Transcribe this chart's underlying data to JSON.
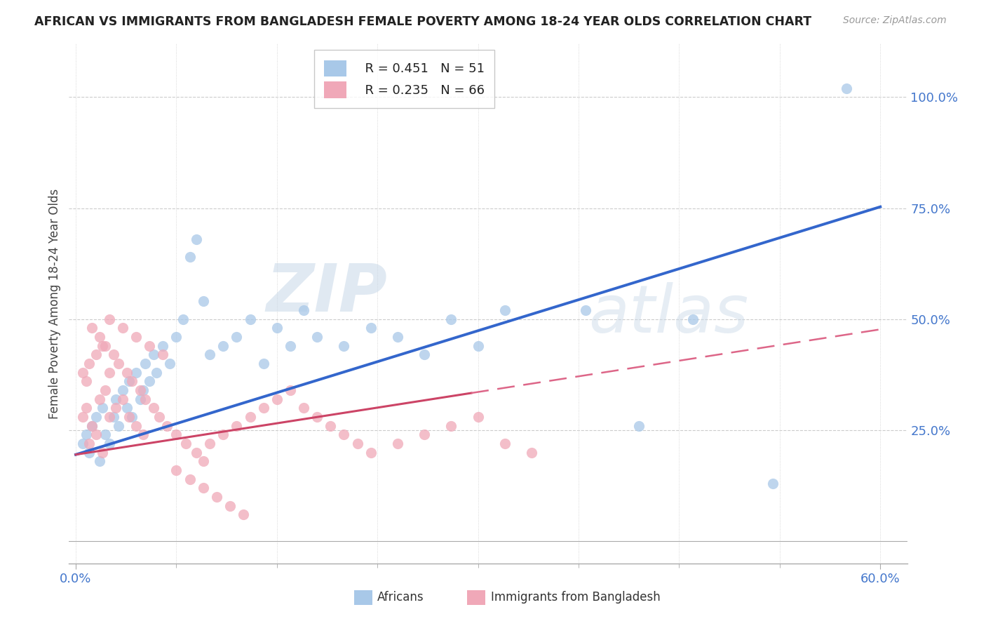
{
  "title": "AFRICAN VS IMMIGRANTS FROM BANGLADESH FEMALE POVERTY AMONG 18-24 YEAR OLDS CORRELATION CHART",
  "source": "Source: ZipAtlas.com",
  "ylabel": "Female Poverty Among 18-24 Year Olds",
  "xlim": [
    0.0,
    0.62
  ],
  "ylim": [
    -0.05,
    1.12
  ],
  "ytick_positions": [
    0.0,
    0.25,
    0.5,
    0.75,
    1.0
  ],
  "ytick_labels": [
    "",
    "25.0%",
    "50.0%",
    "75.0%",
    "100.0%"
  ],
  "watermark_zip": "ZIP",
  "watermark_atlas": "atlas",
  "legend_r1": "R = 0.451",
  "legend_n1": "N = 51",
  "legend_r2": "R = 0.235",
  "legend_n2": "N = 66",
  "blue_color": "#a8c8e8",
  "pink_color": "#f0a8b8",
  "trend_blue": "#3366cc",
  "trend_pink": "#cc4466",
  "trend_pink_dash": "#dd6688",
  "african_intercept": 0.195,
  "african_slope": 0.93,
  "bang_intercept": 0.195,
  "bang_slope": 0.47,
  "africans_x": [
    0.005,
    0.008,
    0.01,
    0.012,
    0.015,
    0.018,
    0.02,
    0.022,
    0.025,
    0.028,
    0.03,
    0.032,
    0.035,
    0.038,
    0.04,
    0.042,
    0.045,
    0.048,
    0.05,
    0.052,
    0.055,
    0.058,
    0.06,
    0.065,
    0.07,
    0.075,
    0.08,
    0.085,
    0.09,
    0.095,
    0.1,
    0.11,
    0.12,
    0.13,
    0.14,
    0.15,
    0.16,
    0.17,
    0.18,
    0.2,
    0.22,
    0.24,
    0.26,
    0.28,
    0.3,
    0.32,
    0.38,
    0.42,
    0.46,
    0.52,
    0.575
  ],
  "africans_y": [
    0.22,
    0.24,
    0.2,
    0.26,
    0.28,
    0.18,
    0.3,
    0.24,
    0.22,
    0.28,
    0.32,
    0.26,
    0.34,
    0.3,
    0.36,
    0.28,
    0.38,
    0.32,
    0.34,
    0.4,
    0.36,
    0.42,
    0.38,
    0.44,
    0.4,
    0.46,
    0.5,
    0.64,
    0.68,
    0.54,
    0.42,
    0.44,
    0.46,
    0.5,
    0.4,
    0.48,
    0.44,
    0.52,
    0.46,
    0.44,
    0.48,
    0.46,
    0.42,
    0.5,
    0.44,
    0.52,
    0.52,
    0.26,
    0.5,
    0.13,
    1.02
  ],
  "bangladesh_x": [
    0.005,
    0.008,
    0.01,
    0.012,
    0.015,
    0.018,
    0.02,
    0.022,
    0.025,
    0.005,
    0.008,
    0.01,
    0.015,
    0.02,
    0.025,
    0.03,
    0.035,
    0.04,
    0.045,
    0.05,
    0.012,
    0.018,
    0.022,
    0.028,
    0.032,
    0.038,
    0.042,
    0.048,
    0.052,
    0.058,
    0.062,
    0.068,
    0.075,
    0.082,
    0.09,
    0.095,
    0.1,
    0.11,
    0.12,
    0.13,
    0.14,
    0.15,
    0.16,
    0.17,
    0.18,
    0.19,
    0.2,
    0.21,
    0.22,
    0.24,
    0.26,
    0.28,
    0.3,
    0.32,
    0.34,
    0.025,
    0.035,
    0.045,
    0.055,
    0.065,
    0.075,
    0.085,
    0.095,
    0.105,
    0.115,
    0.125
  ],
  "bangladesh_y": [
    0.28,
    0.3,
    0.22,
    0.26,
    0.24,
    0.32,
    0.2,
    0.34,
    0.28,
    0.38,
    0.36,
    0.4,
    0.42,
    0.44,
    0.38,
    0.3,
    0.32,
    0.28,
    0.26,
    0.24,
    0.48,
    0.46,
    0.44,
    0.42,
    0.4,
    0.38,
    0.36,
    0.34,
    0.32,
    0.3,
    0.28,
    0.26,
    0.24,
    0.22,
    0.2,
    0.18,
    0.22,
    0.24,
    0.26,
    0.28,
    0.3,
    0.32,
    0.34,
    0.3,
    0.28,
    0.26,
    0.24,
    0.22,
    0.2,
    0.22,
    0.24,
    0.26,
    0.28,
    0.22,
    0.2,
    0.5,
    0.48,
    0.46,
    0.44,
    0.42,
    0.16,
    0.14,
    0.12,
    0.1,
    0.08,
    0.06
  ]
}
